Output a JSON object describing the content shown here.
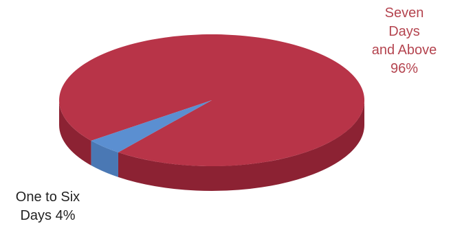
{
  "chart_data": {
    "type": "pie",
    "style": "3d",
    "slices": [
      {
        "label": "Seven\nDays\nand Above\n96%",
        "value": 96,
        "color": "#b83448",
        "side_color": "#8c2233",
        "label_color": "#b4444f"
      },
      {
        "label": "One to Six\nDays 4%",
        "value": 4,
        "color": "#5b8fd1",
        "side_color": "#4a78b4",
        "label_color": "#222222"
      }
    ],
    "title": "",
    "legend": "none"
  }
}
